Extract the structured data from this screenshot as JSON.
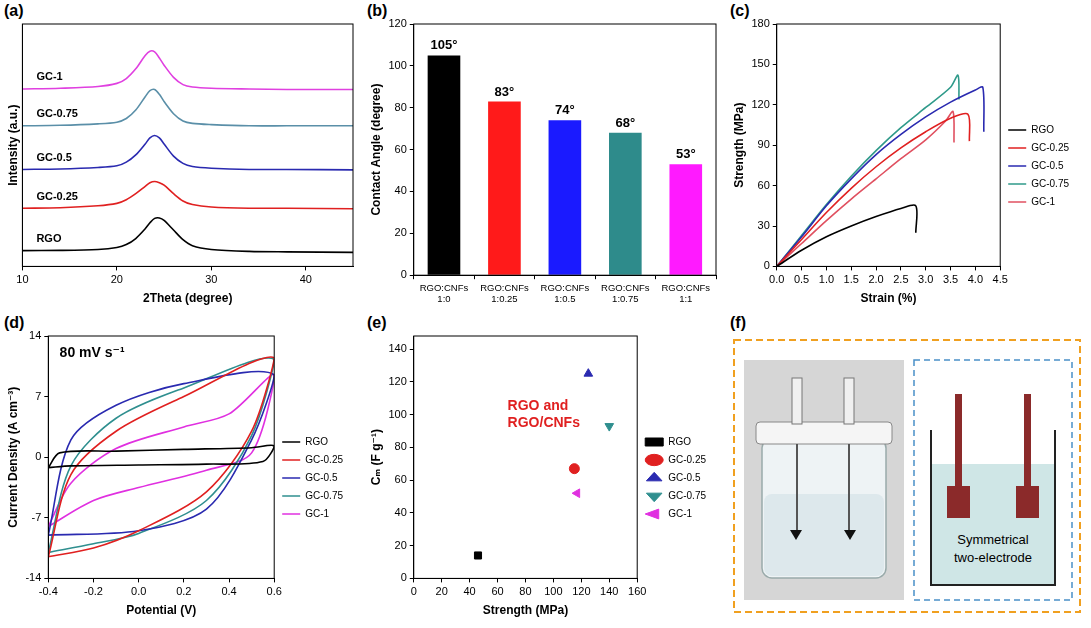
{
  "chart_data": [
    {
      "panel": "(a)",
      "type": "line",
      "x_label": "2Theta (degree)",
      "y_label": "Intensity (a.u.)",
      "xlim": [
        10,
        45
      ],
      "xticks": [
        10,
        20,
        30,
        40
      ],
      "ylim": [
        0,
        10
      ],
      "yticks": [],
      "tick_labels": "x",
      "grid": false,
      "x": [
        10,
        14,
        18,
        20,
        21,
        22,
        23,
        23.5,
        24,
        24.5,
        25,
        26,
        27,
        28,
        30,
        34,
        38,
        45
      ],
      "series": [
        {
          "name": "RGO",
          "color": "#000000",
          "values": [
            0.65,
            0.66,
            0.7,
            0.78,
            0.9,
            1.15,
            1.55,
            1.8,
            1.98,
            2.0,
            1.9,
            1.5,
            1.1,
            0.85,
            0.7,
            0.62,
            0.6,
            0.58
          ]
        },
        {
          "name": "GC-0.25",
          "color": "#e02020",
          "values": [
            2.4,
            2.42,
            2.5,
            2.6,
            2.75,
            3.0,
            3.3,
            3.45,
            3.5,
            3.45,
            3.35,
            3.0,
            2.7,
            2.55,
            2.45,
            2.4,
            2.4,
            2.38
          ]
        },
        {
          "name": "GC-0.5",
          "color": "#2a2ab0",
          "values": [
            4.0,
            4.02,
            4.08,
            4.15,
            4.3,
            4.6,
            5.05,
            5.3,
            5.4,
            5.3,
            5.05,
            4.55,
            4.25,
            4.12,
            4.05,
            4.0,
            4.0,
            3.98
          ]
        },
        {
          "name": "GC-0.75",
          "color": "#5a8fa8",
          "values": [
            5.8,
            5.82,
            5.88,
            5.95,
            6.1,
            6.45,
            7.0,
            7.25,
            7.3,
            7.1,
            6.8,
            6.3,
            6.0,
            5.9,
            5.85,
            5.8,
            5.8,
            5.8
          ]
        },
        {
          "name": "GC-1",
          "color": "#e040e0",
          "values": [
            7.32,
            7.35,
            7.42,
            7.55,
            7.75,
            8.15,
            8.7,
            8.88,
            8.85,
            8.6,
            8.3,
            7.8,
            7.5,
            7.4,
            7.35,
            7.32,
            7.3,
            7.3
          ]
        }
      ]
    },
    {
      "panel": "(b)",
      "type": "bar",
      "y_label": "Contact Angle (degree)",
      "categories": [
        "RGO:CNFs 1:0",
        "RGO:CNFs 1:0.25",
        "RGO:CNFs 1:0.5",
        "RGO:CNFs 1:0.75",
        "RGO:CNFs 1:1"
      ],
      "values": [
        105,
        83,
        74,
        68,
        53
      ],
      "value_labels": [
        "105°",
        "83°",
        "74°",
        "68°",
        "53°"
      ],
      "colors": [
        "#000000",
        "#ff1a1a",
        "#1a1aff",
        "#2e8b8b",
        "#ff1aff"
      ],
      "ylim": [
        0,
        120
      ],
      "yticks": [
        0,
        20,
        40,
        60,
        80,
        100,
        120
      ],
      "grid": false,
      "data_labels": true
    },
    {
      "panel": "(c)",
      "type": "line",
      "x_label": "Strain (%)",
      "y_label": "Strength (MPa)",
      "xlim": [
        0,
        4.5
      ],
      "xticks": [
        {
          "value": 0,
          "label": "0.0"
        },
        0.5,
        {
          "value": 1,
          "label": "1.0"
        },
        1.5,
        {
          "value": 2,
          "label": "2.0"
        },
        2.5,
        {
          "value": 3,
          "label": "3.0"
        },
        3.5,
        {
          "value": 4,
          "label": "4.0"
        },
        4.5
      ],
      "ylim": [
        0,
        180
      ],
      "yticks": [
        0,
        30,
        60,
        90,
        120,
        150,
        180
      ],
      "grid": false,
      "legend": "right",
      "series": [
        {
          "name": "RGO",
          "color": "#000000",
          "x": [
            0,
            0.5,
            1.0,
            1.5,
            2.0,
            2.5,
            2.8,
            2.8
          ],
          "values": [
            0,
            12,
            22,
            30,
            37,
            43,
            45,
            25
          ]
        },
        {
          "name": "GC-0.25",
          "color": "#e02020",
          "x": [
            0,
            0.5,
            1,
            1.5,
            2,
            2.5,
            3,
            3.5,
            3.85,
            3.88
          ],
          "values": [
            0,
            20,
            40,
            58,
            74,
            88,
            100,
            110,
            113,
            93
          ]
        },
        {
          "name": "GC-0.5",
          "color": "#2a2ab0",
          "x": [
            0,
            0.5,
            1,
            1.5,
            2,
            2.5,
            3,
            3.5,
            4,
            4.15,
            4.17
          ],
          "values": [
            0,
            22,
            45,
            65,
            83,
            98,
            111,
            122,
            131,
            133,
            100
          ]
        },
        {
          "name": "GC-0.75",
          "color": "#2f9a8a",
          "x": [
            0,
            0.5,
            1,
            1.5,
            2,
            2.5,
            3,
            3.5,
            3.65,
            3.67
          ],
          "values": [
            0,
            23,
            46,
            67,
            86,
            103,
            118,
            133,
            142,
            124
          ]
        },
        {
          "name": "GC-1",
          "color": "#e05060",
          "x": [
            0,
            0.5,
            1,
            1.5,
            2,
            2.5,
            3,
            3.4,
            3.55,
            3.57
          ],
          "values": [
            0,
            17,
            34,
            50,
            65,
            80,
            94,
            108,
            115,
            92
          ]
        }
      ]
    },
    {
      "panel": "(d)",
      "type": "line",
      "x_label": "Potential (V)",
      "y_label": "Current Density (A cm⁻³)",
      "annotation": "80 mV s⁻¹",
      "xlim": [
        -0.4,
        0.6
      ],
      "xticks": [
        -0.4,
        -0.2,
        {
          "value": 0,
          "label": "0.0"
        },
        0.2,
        0.4,
        0.6
      ],
      "ylim": [
        -14,
        14
      ],
      "yticks": [
        -14,
        -7,
        0,
        7,
        14
      ],
      "grid": false,
      "legend": "right",
      "series": [
        {
          "name": "RGO",
          "color": "#000000",
          "x": [
            -0.4,
            -0.35,
            -0.1,
            0.2,
            0.5,
            0.6,
            0.55,
            0.3,
            0.0,
            -0.3,
            -0.4
          ],
          "values": [
            -1.2,
            0.5,
            0.7,
            0.9,
            1.1,
            1.3,
            -0.5,
            -0.8,
            -0.9,
            -1.0,
            -1.2
          ]
        },
        {
          "name": "GC-0.25",
          "color": "#e02020",
          "x": [
            -0.4,
            -0.3,
            -0.1,
            0.2,
            0.6,
            0.5,
            0.3,
            0.0,
            -0.2,
            -0.4
          ],
          "values": [
            -11.5,
            -2,
            3,
            7,
            11.5,
            3,
            -4,
            -8.5,
            -10.5,
            -11.5
          ]
        },
        {
          "name": "GC-0.5",
          "color": "#2a2ab0",
          "x": [
            -0.4,
            -0.3,
            -0.1,
            0.2,
            0.6,
            0.5,
            0.3,
            0.0,
            -0.4
          ],
          "values": [
            -9,
            2,
            6,
            8.5,
            9.5,
            2,
            -6,
            -8.5,
            -9
          ]
        },
        {
          "name": "GC-0.75",
          "color": "#2f8f8f",
          "x": [
            -0.4,
            -0.3,
            -0.1,
            0.2,
            0.6,
            0.5,
            0.3,
            0.0,
            -0.2,
            -0.4
          ],
          "values": [
            -11,
            -1,
            4.5,
            8,
            11.3,
            2.5,
            -5,
            -8.8,
            -10,
            -11
          ]
        },
        {
          "name": "GC-1",
          "color": "#e030e0",
          "x": [
            -0.4,
            -0.3,
            -0.1,
            0.2,
            0.4,
            0.6,
            0.5,
            0.3,
            0.0,
            -0.2,
            -0.4
          ],
          "values": [
            -8,
            -3,
            1,
            3.5,
            5,
            9.5,
            0.5,
            -1.5,
            -3.5,
            -5,
            -8
          ]
        }
      ]
    },
    {
      "panel": "(e)",
      "type": "scatter",
      "x_label": "Strength (MPa)",
      "y_label": "Cₘ (F g⁻¹)",
      "annotation": "RGO and RGO/CNFs",
      "xlim": [
        0,
        160
      ],
      "xticks": [
        0,
        20,
        40,
        60,
        80,
        100,
        120,
        140,
        160
      ],
      "ylim": [
        0,
        148
      ],
      "yticks": [
        0,
        20,
        40,
        60,
        80,
        100,
        120,
        140
      ],
      "grid": false,
      "legend": "right",
      "series": [
        {
          "name": "RGO",
          "color": "#000000",
          "marker": "square",
          "x": [
            46
          ],
          "values": [
            14
          ]
        },
        {
          "name": "GC-0.25",
          "color": "#e02020",
          "marker": "circle",
          "x": [
            115
          ],
          "values": [
            67
          ]
        },
        {
          "name": "GC-0.5",
          "color": "#2a2ab0",
          "marker": "triangle-up",
          "x": [
            125
          ],
          "values": [
            125
          ]
        },
        {
          "name": "GC-0.75",
          "color": "#2f8f8f",
          "marker": "triangle-down",
          "x": [
            140
          ],
          "values": [
            93
          ]
        },
        {
          "name": "GC-1",
          "color": "#e030e0",
          "marker": "triangle-left",
          "x": [
            117
          ],
          "values": [
            52
          ]
        }
      ]
    }
  ],
  "diagram": {
    "panel": "(f)",
    "label": "Symmetrical two-electrode"
  }
}
